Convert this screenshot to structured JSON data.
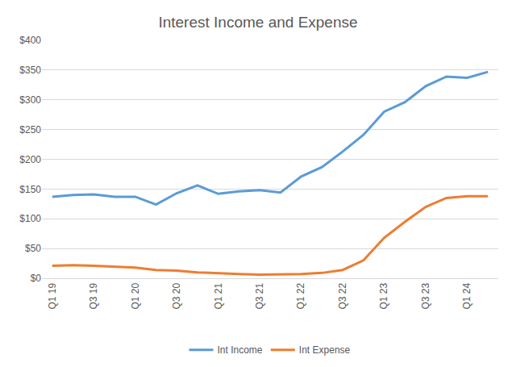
{
  "chart_data": {
    "type": "line",
    "title": "Interest Income and Expense",
    "categories": [
      "Q1 19",
      null,
      "Q3 19",
      null,
      "Q1 20",
      null,
      "Q3 20",
      null,
      "Q1 21",
      null,
      "Q3 21",
      null,
      "Q1 22",
      null,
      "Q3 22",
      null,
      "Q1 23",
      null,
      "Q3 23",
      null,
      "Q1 24",
      null
    ],
    "series": [
      {
        "name": "Int Income",
        "color": "#5b9bd5",
        "values": [
          137,
          140,
          141,
          137,
          137,
          124,
          143,
          156,
          142,
          146,
          148,
          144,
          171,
          187,
          213,
          241,
          280,
          296,
          323,
          339,
          337,
          347
        ]
      },
      {
        "name": "Int Expense",
        "color": "#ed7d31",
        "values": [
          21,
          22,
          21,
          20,
          18,
          14,
          13,
          10,
          9,
          7,
          6,
          6,
          7,
          9,
          14,
          30,
          68,
          95,
          120,
          135,
          138,
          138
        ]
      }
    ],
    "ylim": [
      0,
      400
    ],
    "yticks": [
      {
        "value": 0,
        "label": "$0"
      },
      {
        "value": 50,
        "label": "$50"
      },
      {
        "value": 100,
        "label": "$100"
      },
      {
        "value": 150,
        "label": "$150"
      },
      {
        "value": 200,
        "label": "$200"
      },
      {
        "value": 250,
        "label": "$250"
      },
      {
        "value": 300,
        "label": "$300"
      },
      {
        "value": 350,
        "label": "$350"
      },
      {
        "value": 400,
        "label": "$400"
      }
    ],
    "grid": true,
    "legend": "bottom"
  }
}
